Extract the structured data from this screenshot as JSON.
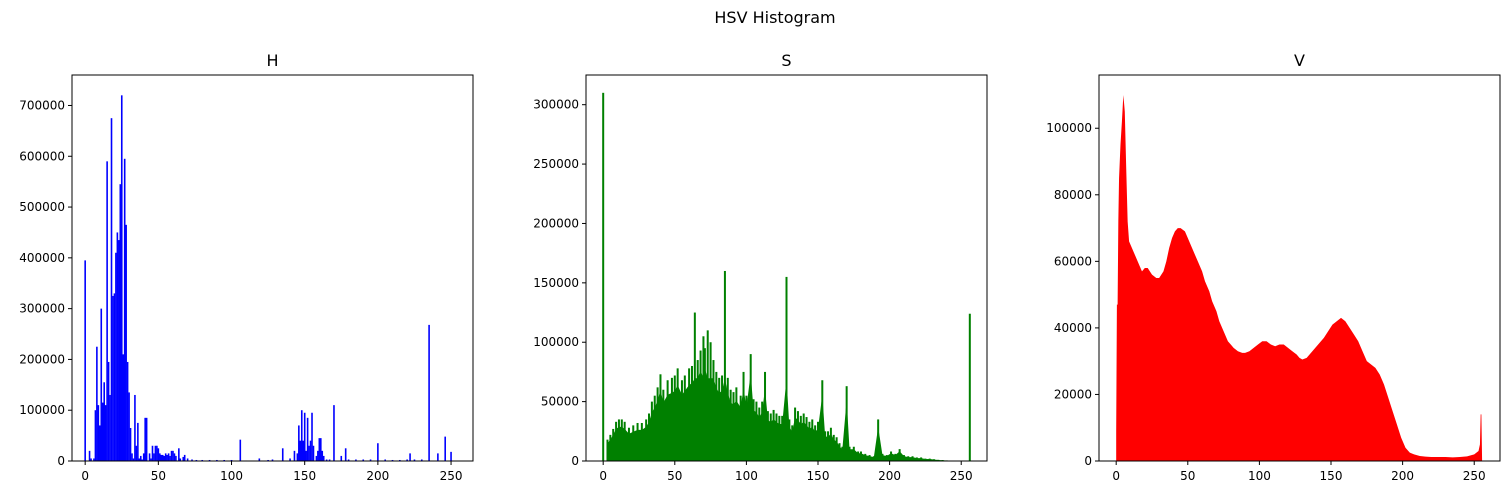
{
  "figure": {
    "suptitle": "HSV Histogram"
  },
  "chart_data": [
    {
      "type": "bar",
      "title": "H",
      "color": "#0000ff",
      "xlim": [
        -9,
        265
      ],
      "ylim": [
        0,
        760000
      ],
      "xticks": [
        0,
        50,
        100,
        150,
        200,
        250
      ],
      "yticks": [
        0,
        100000,
        200000,
        300000,
        400000,
        500000,
        600000,
        700000
      ],
      "points": [
        [
          0,
          395000
        ],
        [
          3,
          20000
        ],
        [
          4,
          5000
        ],
        [
          6,
          5000
        ],
        [
          7,
          100000
        ],
        [
          8,
          225000
        ],
        [
          9,
          110000
        ],
        [
          10,
          70000
        ],
        [
          11,
          300000
        ],
        [
          12,
          115000
        ],
        [
          13,
          155000
        ],
        [
          14,
          110000
        ],
        [
          15,
          590000
        ],
        [
          16,
          195000
        ],
        [
          17,
          130000
        ],
        [
          18,
          675000
        ],
        [
          19,
          325000
        ],
        [
          20,
          330000
        ],
        [
          21,
          410000
        ],
        [
          22,
          450000
        ],
        [
          23,
          435000
        ],
        [
          24,
          545000
        ],
        [
          25,
          720000
        ],
        [
          26,
          210000
        ],
        [
          27,
          595000
        ],
        [
          28,
          465000
        ],
        [
          29,
          195000
        ],
        [
          30,
          135000
        ],
        [
          31,
          65000
        ],
        [
          32,
          15000
        ],
        [
          33,
          5000
        ],
        [
          34,
          130000
        ],
        [
          35,
          30000
        ],
        [
          36,
          75000
        ],
        [
          37,
          5000
        ],
        [
          38,
          10000
        ],
        [
          39,
          3000
        ],
        [
          40,
          15000
        ],
        [
          41,
          85000
        ],
        [
          42,
          85000
        ],
        [
          44,
          15000
        ],
        [
          45,
          5000
        ],
        [
          46,
          30000
        ],
        [
          47,
          15000
        ],
        [
          48,
          30000
        ],
        [
          49,
          30000
        ],
        [
          50,
          25000
        ],
        [
          51,
          15000
        ],
        [
          52,
          12000
        ],
        [
          53,
          12000
        ],
        [
          54,
          10000
        ],
        [
          55,
          15000
        ],
        [
          56,
          12000
        ],
        [
          57,
          15000
        ],
        [
          58,
          10000
        ],
        [
          59,
          20000
        ],
        [
          60,
          20000
        ],
        [
          61,
          15000
        ],
        [
          62,
          10000
        ],
        [
          64,
          25000
        ],
        [
          65,
          5000
        ],
        [
          67,
          8000
        ],
        [
          68,
          12000
        ],
        [
          70,
          5000
        ],
        [
          73,
          3000
        ],
        [
          76,
          2000
        ],
        [
          80,
          2000
        ],
        [
          85,
          2000
        ],
        [
          90,
          2000
        ],
        [
          95,
          2000
        ],
        [
          100,
          2000
        ],
        [
          106,
          42000
        ],
        [
          110,
          1000
        ],
        [
          119,
          5000
        ],
        [
          125,
          2000
        ],
        [
          128,
          3000
        ],
        [
          135,
          25000
        ],
        [
          140,
          5000
        ],
        [
          143,
          20000
        ],
        [
          145,
          15000
        ],
        [
          146,
          70000
        ],
        [
          147,
          40000
        ],
        [
          148,
          100000
        ],
        [
          149,
          40000
        ],
        [
          150,
          95000
        ],
        [
          151,
          20000
        ],
        [
          152,
          85000
        ],
        [
          153,
          30000
        ],
        [
          154,
          40000
        ],
        [
          155,
          95000
        ],
        [
          156,
          30000
        ],
        [
          158,
          10000
        ],
        [
          159,
          20000
        ],
        [
          160,
          45000
        ],
        [
          161,
          45000
        ],
        [
          162,
          20000
        ],
        [
          163,
          10000
        ],
        [
          165,
          3000
        ],
        [
          167,
          3000
        ],
        [
          170,
          110000
        ],
        [
          175,
          10000
        ],
        [
          178,
          25000
        ],
        [
          180,
          3000
        ],
        [
          185,
          3000
        ],
        [
          190,
          3000
        ],
        [
          195,
          3000
        ],
        [
          200,
          35000
        ],
        [
          205,
          3000
        ],
        [
          210,
          2000
        ],
        [
          215,
          2000
        ],
        [
          220,
          3000
        ],
        [
          222,
          15000
        ],
        [
          225,
          3000
        ],
        [
          230,
          3000
        ],
        [
          235,
          268000
        ],
        [
          241,
          15000
        ],
        [
          246,
          48000
        ],
        [
          250,
          18000
        ]
      ]
    },
    {
      "type": "bar",
      "title": "S",
      "color": "#008000",
      "xlim": [
        -12,
        268
      ],
      "ylim": [
        0,
        325000
      ],
      "xticks": [
        0,
        50,
        100,
        150,
        200,
        250
      ],
      "yticks": [
        0,
        50000,
        100000,
        150000,
        200000,
        250000,
        300000
      ],
      "spikes": [
        [
          0,
          310000
        ],
        [
          3,
          18000
        ],
        [
          5,
          22000
        ],
        [
          7,
          27000
        ],
        [
          9,
          33000
        ],
        [
          11,
          35000
        ],
        [
          13,
          35000
        ],
        [
          15,
          33000
        ],
        [
          18,
          28000
        ],
        [
          21,
          30000
        ],
        [
          24,
          32000
        ],
        [
          27,
          32000
        ],
        [
          30,
          35000
        ],
        [
          32,
          40000
        ],
        [
          34,
          50000
        ],
        [
          36,
          55000
        ],
        [
          38,
          62000
        ],
        [
          40,
          73000
        ],
        [
          42,
          60000
        ],
        [
          45,
          68000
        ],
        [
          48,
          70000
        ],
        [
          50,
          72000
        ],
        [
          52,
          78000
        ],
        [
          55,
          68000
        ],
        [
          57,
          72000
        ],
        [
          60,
          78000
        ],
        [
          62,
          80000
        ],
        [
          64,
          125000
        ],
        [
          66,
          85000
        ],
        [
          68,
          93000
        ],
        [
          70,
          105000
        ],
        [
          71,
          95000
        ],
        [
          73,
          110000
        ],
        [
          75,
          100000
        ],
        [
          77,
          85000
        ],
        [
          79,
          75000
        ],
        [
          81,
          70000
        ],
        [
          83,
          72000
        ],
        [
          85,
          160000
        ],
        [
          87,
          70000
        ],
        [
          89,
          60000
        ],
        [
          91,
          58000
        ],
        [
          93,
          62000
        ],
        [
          96,
          55000
        ],
        [
          98,
          75000
        ],
        [
          100,
          55000
        ],
        [
          103,
          90000
        ],
        [
          105,
          52000
        ],
        [
          107,
          50000
        ],
        [
          109,
          45000
        ],
        [
          111,
          50000
        ],
        [
          113,
          75000
        ],
        [
          115,
          42000
        ],
        [
          117,
          40000
        ],
        [
          119,
          43000
        ],
        [
          121,
          40000
        ],
        [
          123,
          38000
        ],
        [
          125,
          38000
        ],
        [
          128,
          155000
        ],
        [
          130,
          35000
        ],
        [
          132,
          30000
        ],
        [
          134,
          45000
        ],
        [
          136,
          42000
        ],
        [
          138,
          38000
        ],
        [
          140,
          40000
        ],
        [
          142,
          37000
        ],
        [
          144,
          33000
        ],
        [
          146,
          35000
        ],
        [
          148,
          30000
        ],
        [
          150,
          33000
        ],
        [
          153,
          68000
        ],
        [
          155,
          25000
        ],
        [
          157,
          25000
        ],
        [
          159,
          28000
        ],
        [
          161,
          22000
        ],
        [
          163,
          20000
        ],
        [
          165,
          15000
        ],
        [
          167,
          12000
        ],
        [
          170,
          63000
        ],
        [
          172,
          12000
        ],
        [
          175,
          12000
        ],
        [
          178,
          8000
        ],
        [
          180,
          8000
        ],
        [
          183,
          6000
        ],
        [
          186,
          5000
        ],
        [
          189,
          4000
        ],
        [
          192,
          35000
        ],
        [
          195,
          6000
        ],
        [
          198,
          5000
        ],
        [
          201,
          8000
        ],
        [
          204,
          6000
        ],
        [
          207,
          10000
        ],
        [
          210,
          5000
        ],
        [
          213,
          4000
        ],
        [
          216,
          4000
        ],
        [
          219,
          3000
        ],
        [
          222,
          3000
        ],
        [
          225,
          2000
        ],
        [
          228,
          2000
        ],
        [
          231,
          1500
        ],
        [
          234,
          1000
        ],
        [
          237,
          800
        ],
        [
          240,
          500
        ],
        [
          256,
          124000
        ]
      ]
    },
    {
      "type": "area",
      "title": "V",
      "color": "#ff0000",
      "xlim": [
        -12,
        268
      ],
      "ylim": [
        0,
        116000
      ],
      "xticks": [
        0,
        50,
        100,
        150,
        200,
        250
      ],
      "yticks": [
        0,
        20000,
        40000,
        60000,
        80000,
        100000
      ],
      "points": [
        [
          0,
          9000
        ],
        [
          0.5,
          47000
        ],
        [
          1,
          47000
        ],
        [
          1.5,
          72000
        ],
        [
          2,
          85000
        ],
        [
          3,
          95000
        ],
        [
          4,
          102000
        ],
        [
          5,
          110000
        ],
        [
          6,
          105000
        ],
        [
          7,
          88000
        ],
        [
          8,
          72000
        ],
        [
          9,
          66000
        ],
        [
          12,
          63000
        ],
        [
          15,
          60000
        ],
        [
          18,
          57000
        ],
        [
          20,
          58000
        ],
        [
          22,
          58000
        ],
        [
          25,
          56000
        ],
        [
          28,
          55000
        ],
        [
          30,
          55000
        ],
        [
          33,
          57000
        ],
        [
          35,
          60000
        ],
        [
          37,
          64000
        ],
        [
          39,
          67000
        ],
        [
          41,
          69000
        ],
        [
          43,
          70000
        ],
        [
          45,
          70000
        ],
        [
          48,
          69000
        ],
        [
          50,
          67000
        ],
        [
          52,
          65000
        ],
        [
          55,
          62000
        ],
        [
          57,
          60000
        ],
        [
          60,
          57000
        ],
        [
          62,
          54000
        ],
        [
          65,
          51000
        ],
        [
          67,
          48000
        ],
        [
          70,
          45000
        ],
        [
          72,
          42000
        ],
        [
          75,
          39000
        ],
        [
          78,
          36000
        ],
        [
          80,
          35000
        ],
        [
          82,
          34000
        ],
        [
          85,
          33000
        ],
        [
          88,
          32500
        ],
        [
          90,
          32500
        ],
        [
          93,
          33000
        ],
        [
          96,
          34000
        ],
        [
          99,
          35000
        ],
        [
          102,
          36000
        ],
        [
          105,
          36000
        ],
        [
          108,
          35000
        ],
        [
          111,
          34500
        ],
        [
          114,
          35000
        ],
        [
          117,
          35000
        ],
        [
          120,
          34000
        ],
        [
          123,
          33000
        ],
        [
          126,
          32000
        ],
        [
          128,
          31000
        ],
        [
          130,
          30500
        ],
        [
          133,
          31000
        ],
        [
          136,
          32500
        ],
        [
          139,
          34000
        ],
        [
          142,
          35500
        ],
        [
          145,
          37000
        ],
        [
          148,
          39000
        ],
        [
          151,
          41000
        ],
        [
          154,
          42000
        ],
        [
          157,
          43000
        ],
        [
          160,
          42000
        ],
        [
          163,
          40000
        ],
        [
          166,
          38000
        ],
        [
          169,
          36000
        ],
        [
          172,
          33000
        ],
        [
          175,
          30000
        ],
        [
          178,
          29000
        ],
        [
          181,
          28000
        ],
        [
          184,
          26000
        ],
        [
          187,
          23000
        ],
        [
          190,
          19000
        ],
        [
          193,
          15000
        ],
        [
          196,
          11000
        ],
        [
          199,
          7000
        ],
        [
          202,
          4000
        ],
        [
          205,
          2500
        ],
        [
          208,
          2000
        ],
        [
          212,
          1500
        ],
        [
          216,
          1300
        ],
        [
          220,
          1200
        ],
        [
          225,
          1200
        ],
        [
          230,
          1200
        ],
        [
          235,
          1100
        ],
        [
          240,
          1200
        ],
        [
          245,
          1400
        ],
        [
          250,
          2000
        ],
        [
          253,
          3000
        ],
        [
          254,
          5000
        ],
        [
          254.5,
          14000
        ],
        [
          255,
          14000
        ],
        [
          255.5,
          0
        ]
      ]
    }
  ]
}
